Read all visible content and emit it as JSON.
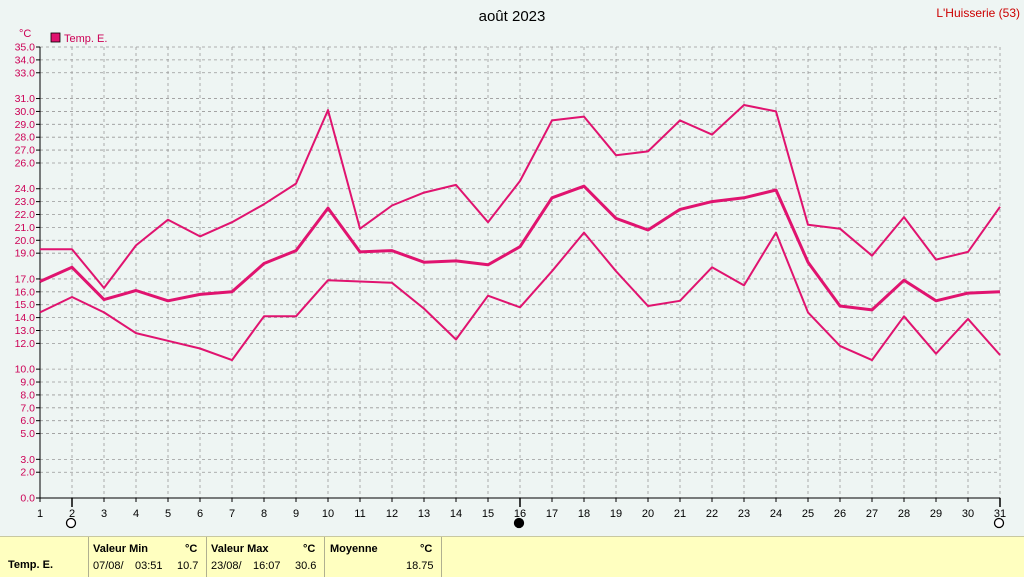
{
  "header": {
    "title": "août 2023",
    "location": "L'Huisserie (53)"
  },
  "colors": {
    "series": "#e0136f",
    "axis_text": "#cc0055",
    "grid": "#999999"
  },
  "chart_data": {
    "type": "line",
    "title": "août 2023",
    "ylabel": "°C",
    "legend": "top-left",
    "grid": true,
    "ylim": [
      0,
      35
    ],
    "y_ticks": [
      "0.0",
      "2.0",
      "3.0",
      "5.0",
      "6.0",
      "7.0",
      "8.0",
      "9.0",
      "10.0",
      "12.0",
      "13.0",
      "14.0",
      "15.0",
      "16.0",
      "17.0",
      "19.0",
      "20.0",
      "21.0",
      "22.0",
      "23.0",
      "24.0",
      "26.0",
      "27.0",
      "28.0",
      "29.0",
      "30.0",
      "31.0",
      "33.0",
      "34.0",
      "35.0"
    ],
    "x": [
      1,
      2,
      3,
      4,
      5,
      6,
      7,
      8,
      9,
      10,
      11,
      12,
      13,
      14,
      15,
      16,
      17,
      18,
      19,
      20,
      21,
      22,
      23,
      24,
      25,
      26,
      27,
      28,
      29,
      30,
      31
    ],
    "moon_phase_days": [
      {
        "day": 2,
        "phase": "full-moon-icon"
      },
      {
        "day": 16,
        "phase": "new-moon-icon"
      },
      {
        "day": 31,
        "phase": "full-moon-icon"
      }
    ],
    "series": [
      {
        "name": "Temp. E.",
        "role": "max",
        "values": [
          19.3,
          19.3,
          16.3,
          19.6,
          21.6,
          20.3,
          21.4,
          22.8,
          24.4,
          30.1,
          20.9,
          22.7,
          23.7,
          24.3,
          21.4,
          24.6,
          29.3,
          29.6,
          26.6,
          26.9,
          29.3,
          28.2,
          30.5,
          30.0,
          21.2,
          20.9,
          18.8,
          21.8,
          18.5,
          19.1,
          22.6
        ]
      },
      {
        "name": "Temp. E.",
        "role": "mean",
        "values": [
          16.8,
          17.9,
          15.4,
          16.1,
          15.3,
          15.8,
          16.0,
          18.2,
          19.2,
          22.5,
          19.1,
          19.2,
          18.3,
          18.4,
          18.1,
          19.5,
          23.3,
          24.2,
          21.7,
          20.8,
          22.4,
          23.0,
          23.3,
          23.9,
          18.3,
          14.9,
          14.6,
          16.9,
          15.3,
          15.9,
          16.0
        ]
      },
      {
        "name": "Temp. E.",
        "role": "min",
        "values": [
          14.4,
          15.6,
          14.4,
          12.8,
          12.2,
          11.6,
          10.7,
          14.1,
          14.1,
          16.9,
          16.8,
          16.7,
          14.7,
          12.3,
          15.7,
          14.8,
          17.6,
          20.6,
          17.6,
          14.9,
          15.3,
          17.9,
          16.5,
          20.6,
          14.4,
          11.8,
          10.7,
          14.1,
          11.2,
          13.9,
          11.1
        ]
      }
    ]
  },
  "legend": {
    "label": "Temp. E."
  },
  "footer": {
    "series_label": "Temp. E.",
    "min": {
      "header": "Valeur Min",
      "unit": "°C",
      "date": "07/08/",
      "time": "03:51",
      "value": "10.7"
    },
    "max": {
      "header": "Valeur Max",
      "unit": "°C",
      "date": "23/08/",
      "time": "16:07",
      "value": "30.6"
    },
    "mean": {
      "header": "Moyenne",
      "unit": "°C",
      "value": "18.75"
    }
  }
}
